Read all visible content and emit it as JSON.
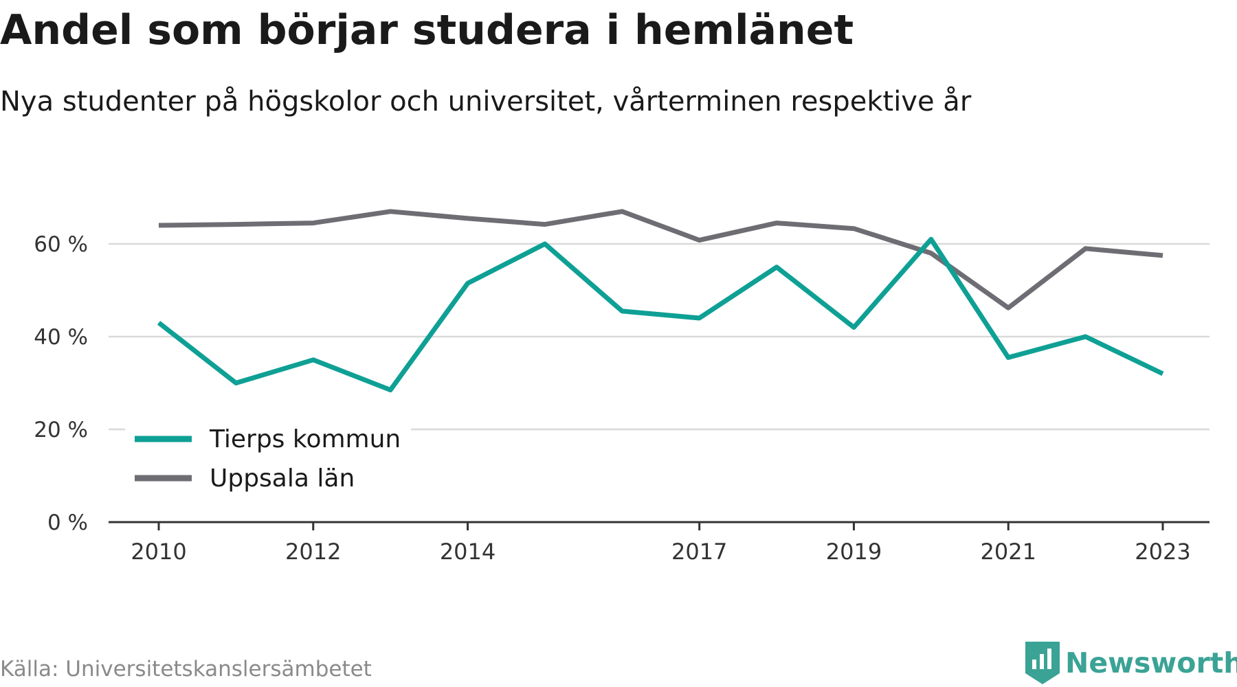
{
  "title": "Andel som börjar studera i hemlänet",
  "subtitle": "Nya studenter på högskolor och universitet, vårterminen respektive år",
  "source": "Källa: Universitetskanslersämbetet",
  "brand": "Newsworthy",
  "colors": {
    "tierp": "#0fa095",
    "uppsala": "#6e6d73",
    "grid": "#d9d9d9",
    "axis": "#333333",
    "brand": "#3aa395"
  },
  "chart_data": {
    "type": "line",
    "x": [
      2010,
      2011,
      2012,
      2013,
      2014,
      2015,
      2016,
      2017,
      2018,
      2019,
      2020,
      2021,
      2022,
      2023
    ],
    "xticks": [
      2010,
      2012,
      2014,
      2017,
      2019,
      2021,
      2023
    ],
    "yticks": [
      0,
      20,
      40,
      60
    ],
    "ytick_labels": [
      "0 %",
      "20 %",
      "40 %",
      "60 %"
    ],
    "ylim": [
      0,
      70
    ],
    "grid": true,
    "legend_position": "bottom-left",
    "series": [
      {
        "name": "Tierps kommun",
        "color": "#0fa095",
        "values": [
          43,
          30,
          35,
          28.5,
          51.5,
          60,
          45.5,
          44,
          55,
          42,
          61,
          35.5,
          40,
          32
        ]
      },
      {
        "name": "Uppsala län",
        "color": "#6e6d73",
        "values": [
          64,
          64.2,
          64.5,
          67,
          65.5,
          64.2,
          67,
          60.8,
          64.5,
          63.3,
          58,
          46.2,
          59,
          57.5
        ]
      }
    ]
  }
}
